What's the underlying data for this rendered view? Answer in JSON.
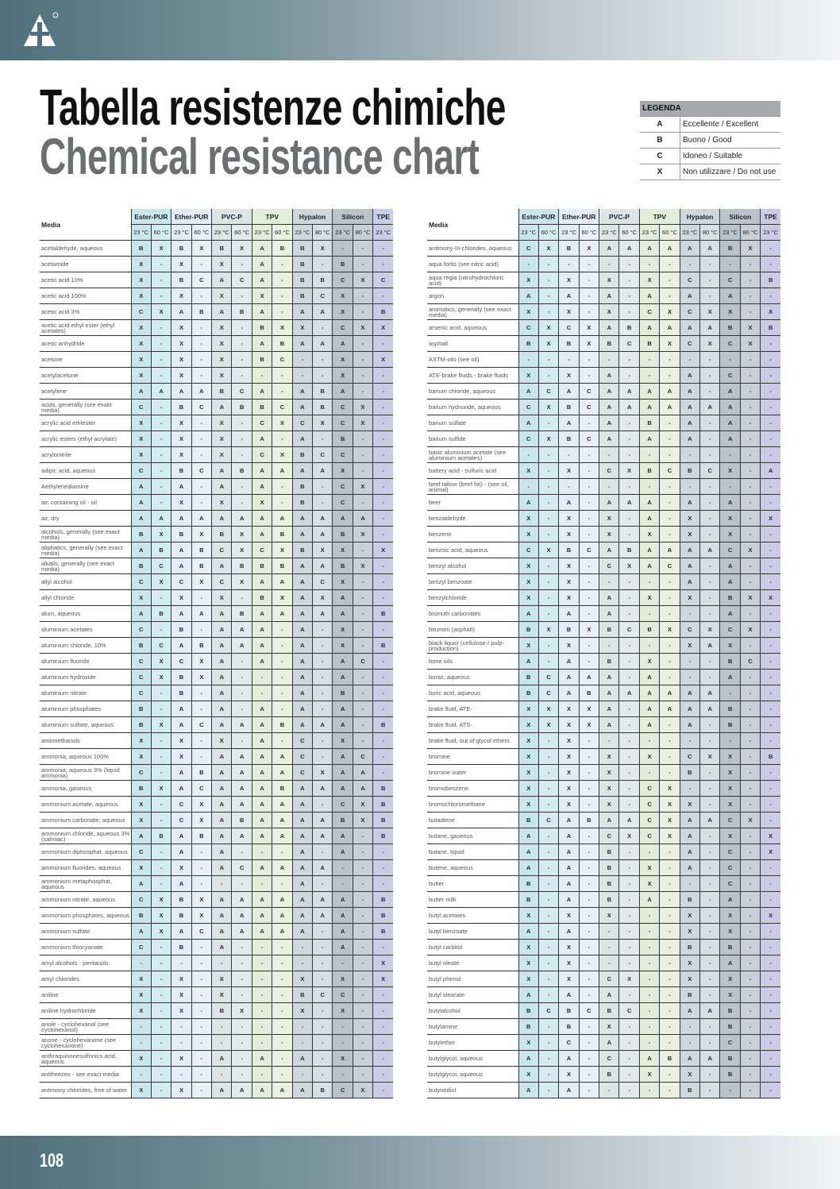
{
  "page": {
    "number": "108"
  },
  "title": {
    "it": "Tabella resistenze chimiche",
    "en": "Chemical resistance chart"
  },
  "legend": {
    "header": "LEGENDA",
    "items": [
      {
        "key": "A",
        "label": "Eccellente / Excellent"
      },
      {
        "key": "B",
        "label": "Buono / Good"
      },
      {
        "key": "C",
        "label": "Idoneo / Suitable"
      },
      {
        "key": "X",
        "label": "Non utilizzare / Do not use"
      }
    ]
  },
  "colors": {
    "ester_pur": "#c9e6ec",
    "ether_pur": "#e3ecf5",
    "pvc_p": "#dde4e6",
    "tpv": "#e2ecd8",
    "hypalon": "#cfd7dc",
    "silicon": "#b9c3c9",
    "tpe": "#cbcbe6"
  },
  "table_header": {
    "media_label": "Media",
    "groups": [
      {
        "name": "Ester-PUR",
        "temps": [
          "23 °C",
          "60 °C"
        ]
      },
      {
        "name": "Ether-PUR",
        "temps": [
          "23 °C",
          "60 °C"
        ]
      },
      {
        "name": "PVC-P",
        "temps": [
          "23 °C",
          "60 °C"
        ]
      },
      {
        "name": "TPV",
        "temps": [
          "23 °C",
          "60 °C"
        ]
      },
      {
        "name": "Hypalon",
        "temps": [
          "23 °C",
          "80 °C"
        ]
      },
      {
        "name": "Silicon",
        "temps": [
          "23 °C",
          "80 °C"
        ]
      },
      {
        "name": "TPE",
        "temps": [
          "23 °C"
        ]
      }
    ]
  },
  "tables": [
    {
      "rows": [
        {
          "media": "acetaldehyde, aqueous",
          "values": "B X B X B X A B B X - - -"
        },
        {
          "media": "acetamide",
          "values": "X - X - X - A - B - B - -"
        },
        {
          "media": "acetic acid 10%",
          "values": "X - B C A C A - B B C X C"
        },
        {
          "media": "acetic acid 100%",
          "values": "X - X - X - X - B C X - -"
        },
        {
          "media": "acetic acid 3%",
          "values": "C X A B A B A - A A X - B"
        },
        {
          "media": "acetic acid ethyl ester (ethyl acetates)",
          "values": "X - X - X - B X X - C X X"
        },
        {
          "media": "acetic anhydride",
          "values": "X - X - X - A B A A A - -"
        },
        {
          "media": "acetone",
          "values": "X - X - X - B C - - X - X"
        },
        {
          "media": "acetylacetone",
          "values": "X - X - X - - - - - X - -"
        },
        {
          "media": "acetylene",
          "values": "A A A A B C A - A B A - -"
        },
        {
          "media": "acids, generally (see exakt media)",
          "values": "C - B C A B B C A B C X -"
        },
        {
          "media": "acrylic acid ethlester",
          "values": "X - X - X - C X C X C X -"
        },
        {
          "media": "acrylic esters (ethyl acrylate)",
          "values": "X - X - X - A - A - B - -"
        },
        {
          "media": "acrylonitrile",
          "values": "X - X - X - C X B C C - -"
        },
        {
          "media": "adipic acid, aqueous",
          "values": "C - B C A B A A A A X - -"
        },
        {
          "media": "Aethylenediamine",
          "values": "A - A - A - A - B - C X -"
        },
        {
          "media": "air, containing oil - oil",
          "values": "A - X - X - X - B - C - -"
        },
        {
          "media": "air, dry",
          "values": "A A A A A A A A A A A A -"
        },
        {
          "media": "alcohols, generally (see exact media)",
          "values": "B X B X B X A B A A B X -"
        },
        {
          "media": "aliphatics, generally (see exact media)",
          "values": "A B A B C X C X B X X - X"
        },
        {
          "media": "alkalis, generally (see exact media)",
          "values": "B C A B A B B B A A B X -"
        },
        {
          "media": "allyl alcohol",
          "values": "C X C X C X A A A C X - -"
        },
        {
          "media": "allyl chloride",
          "values": "X - X - X - B X A X A - -"
        },
        {
          "media": "alum, aqueous",
          "values": "A B A A A B A A A A A - B"
        },
        {
          "media": "aluminium acetates",
          "values": "C - B - A A A - A - X - -"
        },
        {
          "media": "aluminium chloride, 10%",
          "values": "B C A B A A A - A - X - B"
        },
        {
          "media": "aluminium fluoride",
          "values": "C X C X A - A - A - A C -"
        },
        {
          "media": "aluminium hydroxide",
          "values": "C X B X A - - - A - A - -"
        },
        {
          "media": "aluminium nitrate",
          "values": "C - B - A - - - A - B - -"
        },
        {
          "media": "aluminium phosphates",
          "values": "B - A - A - A - A - A - -"
        },
        {
          "media": "aluminium sulfate, aqueous",
          "values": "B X A C A A A B A A A - B"
        },
        {
          "media": "aminoethanols",
          "values": "X - X - X - A - C - X - -"
        },
        {
          "media": "ammonia, aqueous 100%",
          "values": "X - X - A A A A C - A C -"
        },
        {
          "media": "ammonia, aqueous 3% (liquid ammonia)",
          "values": "C - A B A A A A C X A A -"
        },
        {
          "media": "ammonia, gaseous",
          "values": "B X A C A A A B A A A A B"
        },
        {
          "media": "ammonium acetate, aqueous",
          "values": "X - C X A A A A A - C X B"
        },
        {
          "media": "ammonium carbonate, aqueous",
          "values": "X - C X A B A A A A B X B"
        },
        {
          "media": "ammonium chloride, aqueous 3% (salmiac)",
          "values": "A B A B A A A A A A A - B"
        },
        {
          "media": "ammonium diphosphat, aqueous",
          "values": "C - A - A - - - A - A - -"
        },
        {
          "media": "ammonium fluorides, aqueous",
          "values": "X - X - A C A A A A - - -"
        },
        {
          "media": "ammonium metaphosphat, aqueous",
          "values": "A - A - - - - - A - - - -"
        },
        {
          "media": "ammonium nitrate, aqueous",
          "values": "C X B X A A A A A A A - B"
        },
        {
          "media": "ammonium phosphates, aqueous",
          "values": "B X B X A A A A A A A - B"
        },
        {
          "media": "ammonium sulfate",
          "values": "A X A C A A A A A - A - B"
        },
        {
          "media": "ammonium thiocyanate",
          "values": "C - B - A - - - - - A - -"
        },
        {
          "media": "amyl alcohols - pentanols",
          "values": "- - - - - - - - - - - - X"
        },
        {
          "media": "amyl chlorides",
          "values": "X - X - X - - - X - X - X"
        },
        {
          "media": "aniline",
          "values": "X - X - X - - - B C C - -"
        },
        {
          "media": "aniline hydrochloride",
          "values": "X - X - B X - - X - X - -"
        },
        {
          "media": "anole - cyclohexanol (see cyclohexanol)",
          "values": "- - - - - - - - - - - - -"
        },
        {
          "media": "anone - cyclohexanone (see cyclohexanone)",
          "values": "- - - - - - - - - - - - -"
        },
        {
          "media": "anthraquinonesulfonics acid, aqueous",
          "values": "X - X - A - A - A - X - -"
        },
        {
          "media": "antifreezes - see exact media",
          "values": "- - - - - - - - - - - - -"
        },
        {
          "media": "antimony chlorides, free of water",
          "values": "X - X - A A A A A B C X -"
        }
      ]
    },
    {
      "rows": [
        {
          "media": "antimony-III-chlorides, aqueous",
          "values": "C X B X A A A A A A B X -"
        },
        {
          "media": "aqua fortis (see nitric acid)",
          "values": "- - - - - - - - - - - - -"
        },
        {
          "media": "aqua regia (nitrohydrochloric acid)",
          "values": "X - X - X - X - C - C - B"
        },
        {
          "media": "argon",
          "values": "A - A - A - A - A - A - -"
        },
        {
          "media": "aromatics, generally (see exact media)",
          "values": "X - X - X - C X C X X - X"
        },
        {
          "media": "arsenic acid, aqueous",
          "values": "C X C X A B A A A A B X B"
        },
        {
          "media": "asphalt",
          "values": "B X B X B C B X C X C X -"
        },
        {
          "media": "ASTM-oils (see oil)",
          "values": "- - - - - - - - - - - - -"
        },
        {
          "media": "ATE-brake fluids - brake fluids",
          "values": "X - X - A - - - A - C - -"
        },
        {
          "media": "barium chloride, aqueous",
          "values": "A C A C A A A A A - A - -"
        },
        {
          "media": "barium hydroxide, aqueous",
          "values": "C X B C A A A A A A A - -"
        },
        {
          "media": "barium sulfate",
          "values": "A - A - A - B - A - A - -"
        },
        {
          "media": "barium sulfide",
          "values": "C X B C A - A - A - A - -"
        },
        {
          "media": "basic aluminium acetate (see aluminium acetates)",
          "values": "- - - - - - - - - - - - -"
        },
        {
          "media": "battery acid - sulfuric acid",
          "values": "X - X - C X B C B C X - A"
        },
        {
          "media": "beef tallow (beef fat) - (see oil, animal)",
          "values": "- - - - - - - - - - - - -"
        },
        {
          "media": "beer",
          "values": "A - A - A A A - A - A - -"
        },
        {
          "media": "benzaldehyde",
          "values": "X - X - X - A - X - X - X"
        },
        {
          "media": "benzene",
          "values": "X - X - X - X - X - X - -"
        },
        {
          "media": "benzoic acid, aqueous",
          "values": "C X B C A B A A A A C X -"
        },
        {
          "media": "benzyl alcohol",
          "values": "X - X - C X A C A - A - -"
        },
        {
          "media": "benzyl benzoate",
          "values": "X - X - - - - - A - A - -"
        },
        {
          "media": "benzylchloride",
          "values": "X - X - A - X - X - B X X"
        },
        {
          "media": "bismuth carbonates",
          "values": "A - A - A - - - - - A - -"
        },
        {
          "media": "bitumen (asphalt)",
          "values": "B X B X B C B X C X C X -"
        },
        {
          "media": "black liquor (cellulose-/ pulp-production)",
          "values": "X - X - - - - - X A X - -"
        },
        {
          "media": "bone oils",
          "values": "A - A - B - X - - - B C -"
        },
        {
          "media": "borax, aqueous",
          "values": "B C A A A - A - - - A - -"
        },
        {
          "media": "boric acid, aqueous",
          "values": "B C A B A A A A A A - - -"
        },
        {
          "media": "brake fluid, ATE-",
          "values": "X X X X A - A A A A B - -"
        },
        {
          "media": "brake fluid, ATS-",
          "values": "X X X X A - A - A - B - -"
        },
        {
          "media": "brake fluid, out of glycol ethers",
          "values": "X - X - - - - - - - - - -"
        },
        {
          "media": "bromine",
          "values": "X - X - X - X - C X X - B"
        },
        {
          "media": "bromine water",
          "values": "X - X - X - - - B - X - -"
        },
        {
          "media": "bromobenzene",
          "values": "X - X - X - C X - - X - -"
        },
        {
          "media": "bromochloromethane",
          "values": "X - X - X - C X X - X - -"
        },
        {
          "media": "butadiene",
          "values": "B C A B A A C X A A C X -"
        },
        {
          "media": "butane, gaseous",
          "values": "A - A - C X C X A - X - X"
        },
        {
          "media": "butane, liquid",
          "values": "A - A - B - - - A - C - X"
        },
        {
          "media": "butene, aqueous",
          "values": "A - A - B - X - A - C - -"
        },
        {
          "media": "butter",
          "values": "B - A - B - X - - - C - -"
        },
        {
          "media": "butter milk",
          "values": "B - A - B - A - B - A - -"
        },
        {
          "media": "butyl acetates",
          "values": "X - X - X - - - X - X - X"
        },
        {
          "media": "butyl benzoate",
          "values": "A - A - - - - - X - X - -"
        },
        {
          "media": "butyl carbitol",
          "values": "X - X - - - - - B - B - -"
        },
        {
          "media": "butyl oleate",
          "values": "X - X - - - - - X - A - -"
        },
        {
          "media": "butyl phenol",
          "values": "X - X - C X - - X - X - -"
        },
        {
          "media": "butyl stearate",
          "values": "A - A - A - - - B - X - -"
        },
        {
          "media": "butylalcohol",
          "values": "B C B C B C - - A A B - -"
        },
        {
          "media": "butylamine",
          "values": "B - B - X - - - - - B - -"
        },
        {
          "media": "butylether",
          "values": "X - C - A - - - - - C - -"
        },
        {
          "media": "butylglycol, aqueous",
          "values": "A - A - C - A B A A B - -"
        },
        {
          "media": "butylglycol, aqueous",
          "values": "X - X - B - X - X - B - -"
        },
        {
          "media": "butynediol",
          "values": "A - A - - - - - B - - - -"
        }
      ]
    }
  ]
}
